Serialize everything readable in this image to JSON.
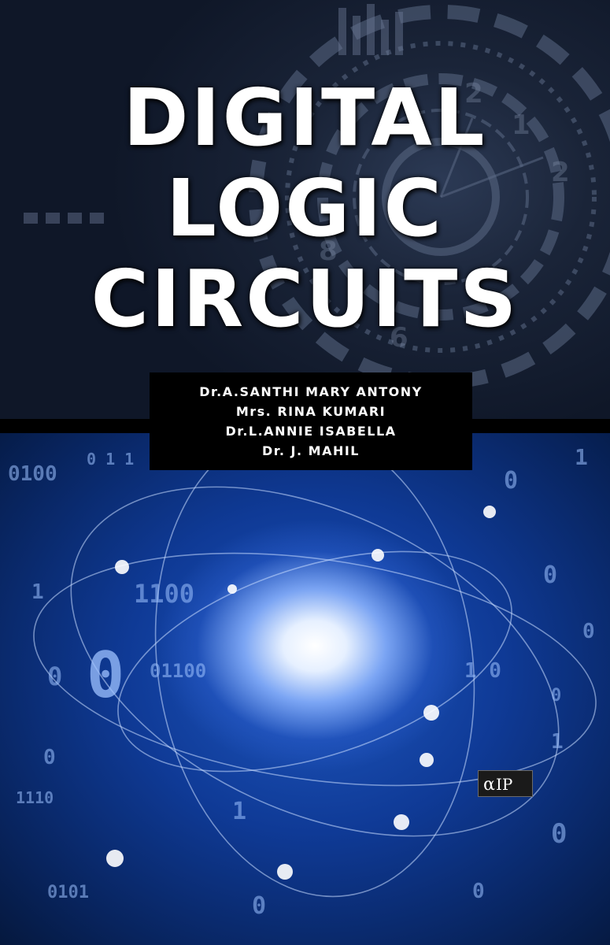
{
  "title_lines": [
    "DIGITAL",
    "LOGIC",
    "CIRCUITS"
  ],
  "authors": [
    "Dr.A.SANTHI MARY ANTONY",
    "Mrs. RINA KUMARI",
    "Dr.L.ANNIE ISABELLA",
    "Dr. J. MAHIL"
  ],
  "publisher_logo_text": "AIP",
  "colors": {
    "top_background": "#1a2438",
    "bottom_glow": "#1f58c0",
    "title_text": "#ffffff",
    "author_box": "#000000"
  }
}
